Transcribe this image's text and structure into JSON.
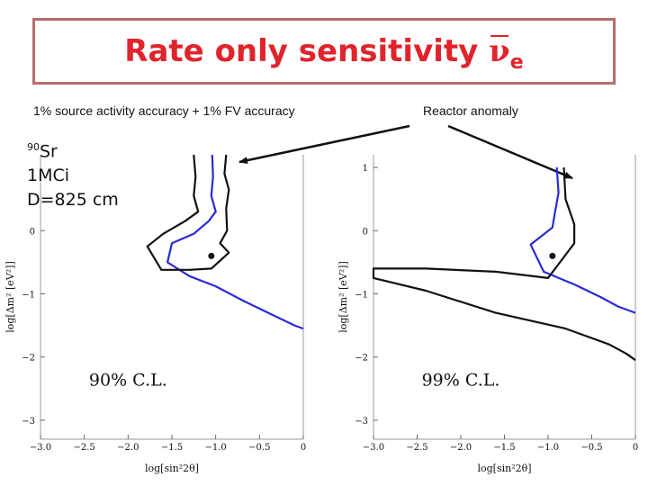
{
  "slide": {
    "title_text": "Rate only sensitivity ",
    "title_symbol": "ν",
    "title_subscript": "e",
    "left_caption": "1% source activity accuracy + 1% FV accuracy",
    "right_caption": "Reactor anomaly",
    "source": {
      "isotope_mass": "90",
      "isotope_symbol": "Sr",
      "activity": "1MCi",
      "distance": "D=825 cm"
    },
    "colors": {
      "title": "#e0242c",
      "border": "#b86b6b",
      "blue_contour": "#2b2bd4",
      "black_contour": "#111111"
    }
  },
  "chart_data": [
    {
      "type": "line",
      "xlabel": "log[sin²2θ]",
      "ylabel": "log[Δm² [eV²]]",
      "xlim": [
        -3.0,
        0.0
      ],
      "ylim": [
        -3.3,
        1.2
      ],
      "xticks": [
        "−3.0",
        "−2.5",
        "−2.0",
        "−1.5",
        "−1.0",
        "−0.5",
        "0"
      ],
      "yticks": [
        "0",
        "−1",
        "−2",
        "−3"
      ],
      "annotation": "90% C.L.",
      "best_fit_point": [
        -1.05,
        -0.4
      ],
      "series": [
        {
          "color": "blue",
          "points": [
            [
              -1.04,
              1.2
            ],
            [
              -1.03,
              0.85
            ],
            [
              -1.05,
              0.55
            ],
            [
              -1.0,
              0.3
            ],
            [
              -1.08,
              0.15
            ],
            [
              -1.25,
              -0.05
            ],
            [
              -1.5,
              -0.2
            ],
            [
              -1.55,
              -0.5
            ],
            [
              -1.3,
              -0.72
            ],
            [
              -1.0,
              -0.88
            ],
            [
              -0.7,
              -1.1
            ],
            [
              -0.4,
              -1.3
            ],
            [
              -0.1,
              -1.5
            ],
            [
              0.0,
              -1.55
            ]
          ]
        },
        {
          "color": "black",
          "points": [
            [
              -1.25,
              1.2
            ],
            [
              -1.23,
              0.85
            ],
            [
              -1.25,
              0.55
            ],
            [
              -1.2,
              0.3
            ],
            [
              -1.35,
              0.15
            ],
            [
              -1.6,
              -0.05
            ],
            [
              -1.78,
              -0.25
            ],
            [
              -1.62,
              -0.62
            ],
            [
              -1.3,
              -0.62
            ],
            [
              -1.05,
              -0.6
            ],
            [
              -0.85,
              -0.35
            ],
            [
              -0.95,
              -0.2
            ],
            [
              -0.87,
              0.0
            ],
            [
              -0.88,
              0.35
            ],
            [
              -0.85,
              0.65
            ],
            [
              -0.9,
              0.9
            ],
            [
              -0.88,
              1.2
            ]
          ]
        }
      ]
    },
    {
      "type": "line",
      "xlabel": "log[sin²2θ]",
      "ylabel": "log[Δm² [eV²]]",
      "xlim": [
        -3.0,
        0.0
      ],
      "ylim": [
        -3.3,
        1.2
      ],
      "xticks": [
        "−3.0",
        "−2.5",
        "−2.0",
        "−1.5",
        "−1.0",
        "−0.5",
        "0"
      ],
      "yticks": [
        "1",
        "0",
        "−1",
        "−2",
        "−3"
      ],
      "annotation": "99% C.L.",
      "best_fit_point": [
        -0.95,
        -0.4
      ],
      "series": [
        {
          "color": "blue",
          "points": [
            [
              -0.9,
              1.0
            ],
            [
              -0.88,
              0.6
            ],
            [
              -0.92,
              0.3
            ],
            [
              -0.95,
              0.05
            ],
            [
              -1.2,
              -0.22
            ],
            [
              -1.05,
              -0.65
            ],
            [
              -0.7,
              -0.85
            ],
            [
              -0.4,
              -1.05
            ],
            [
              -0.2,
              -1.2
            ],
            [
              0.0,
              -1.3
            ]
          ]
        },
        {
          "color": "black",
          "points": [
            [
              -0.82,
              1.0
            ],
            [
              -0.8,
              0.5
            ],
            [
              -0.7,
              0.1
            ],
            [
              -0.7,
              -0.2
            ],
            [
              -1.0,
              -0.75
            ],
            [
              -1.6,
              -0.65
            ],
            [
              -2.4,
              -0.6
            ],
            [
              -3.0,
              -0.6
            ],
            [
              -3.0,
              -0.75
            ],
            [
              -2.4,
              -0.95
            ],
            [
              -1.6,
              -1.3
            ],
            [
              -0.8,
              -1.55
            ],
            [
              -0.3,
              -1.8
            ],
            [
              -0.1,
              -1.95
            ],
            [
              0.0,
              -2.05
            ]
          ]
        }
      ]
    }
  ]
}
